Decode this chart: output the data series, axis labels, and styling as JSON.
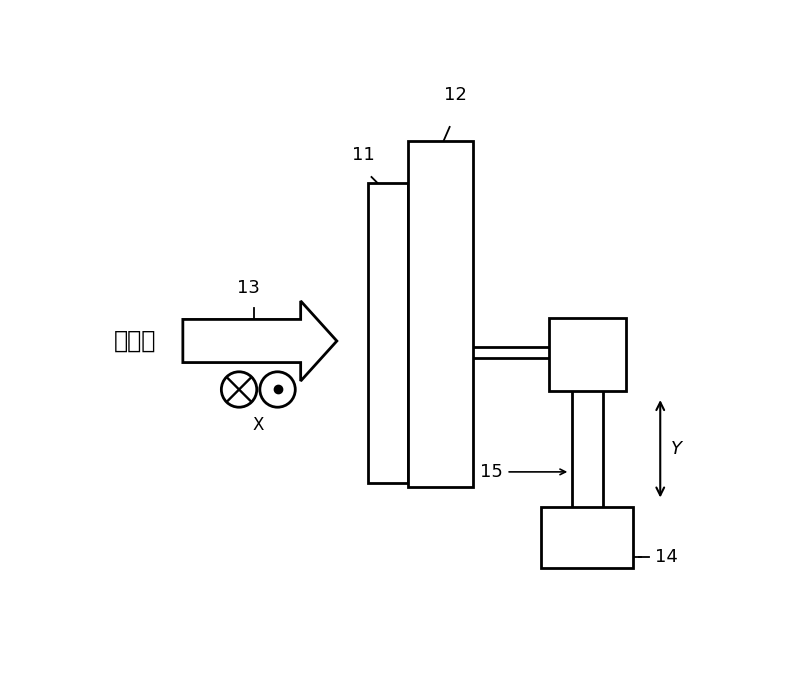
{
  "bg_color": "#ffffff",
  "ion_beam_text": "离子束",
  "label_13": "13",
  "label_11": "11",
  "label_12": "12",
  "label_14": "14",
  "label_15": "15",
  "label_X": "X",
  "label_Y": "Y",
  "line_color": "#000000",
  "rect_fill": "#ffffff",
  "lw": 2.0
}
